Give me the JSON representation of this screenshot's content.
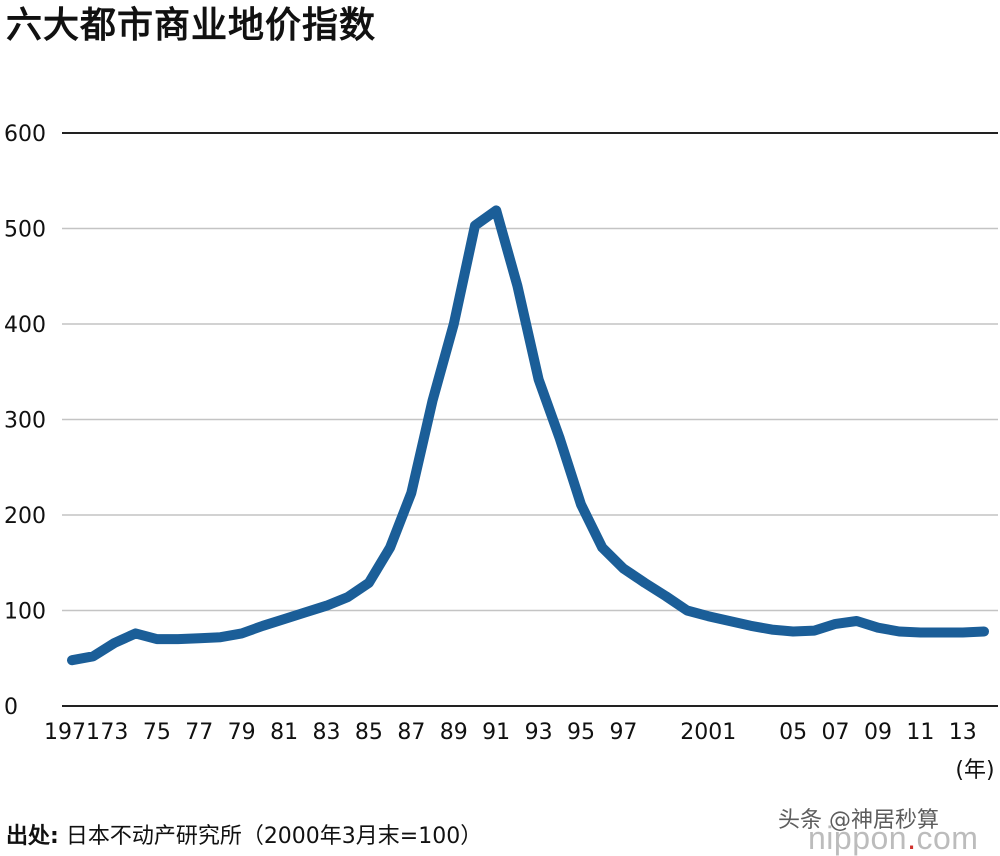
{
  "title": "六大都市商业地价指数",
  "source": {
    "label": "出处:",
    "text": "日本不动产研究所（2000年3月末=100）"
  },
  "watermark": {
    "text": "头条 @神居秒算",
    "logo_main": "nippon",
    "logo_dot": ".",
    "logo_suffix": "com"
  },
  "chart_data": {
    "type": "line",
    "title": "六大都市商业地价指数",
    "xlabel": "(年)",
    "ylabel": "",
    "color": "#1b5e98",
    "xlim": [
      1971,
      2014
    ],
    "ylim": [
      0,
      600
    ],
    "y_ticks": [
      0,
      100,
      200,
      300,
      400,
      500,
      600
    ],
    "grid": true,
    "x_ticks": [
      {
        "x": 1971,
        "label": "1971"
      },
      {
        "x": 1973,
        "label": "73"
      },
      {
        "x": 1975,
        "label": "75"
      },
      {
        "x": 1977,
        "label": "77"
      },
      {
        "x": 1979,
        "label": "79"
      },
      {
        "x": 1981,
        "label": "81"
      },
      {
        "x": 1983,
        "label": "83"
      },
      {
        "x": 1985,
        "label": "85"
      },
      {
        "x": 1987,
        "label": "87"
      },
      {
        "x": 1989,
        "label": "89"
      },
      {
        "x": 1991,
        "label": "91"
      },
      {
        "x": 1993,
        "label": "93"
      },
      {
        "x": 1995,
        "label": "95"
      },
      {
        "x": 1997,
        "label": "97"
      },
      {
        "x": 2001,
        "label": "2001"
      },
      {
        "x": 2005,
        "label": "05"
      },
      {
        "x": 2007,
        "label": "07"
      },
      {
        "x": 2009,
        "label": "09"
      },
      {
        "x": 2011,
        "label": "11"
      },
      {
        "x": 2013,
        "label": "13"
      }
    ],
    "series": [
      {
        "x": [
          1971,
          1972,
          1973,
          1974,
          1975,
          1976,
          1977,
          1978,
          1979,
          1980,
          1981,
          1982,
          1983,
          1984,
          1985,
          1986,
          1987,
          1988,
          1989,
          1990,
          1991,
          1992,
          1993,
          1994,
          1995,
          1996,
          1997,
          1998,
          1999,
          2000,
          2001,
          2002,
          2003,
          2004,
          2005,
          2006,
          2007,
          2008,
          2009,
          2010,
          2011,
          2012,
          2013,
          2014
        ],
        "values": [
          48,
          52,
          66,
          76,
          70,
          70,
          71,
          72,
          76,
          84,
          91,
          98,
          105,
          114,
          129,
          166,
          223,
          320,
          400,
          503,
          519,
          440,
          342,
          280,
          211,
          166,
          144,
          129,
          115,
          100,
          94,
          89,
          84,
          80,
          78,
          79,
          86,
          89,
          82,
          78,
          77,
          77,
          77,
          78
        ]
      }
    ]
  }
}
